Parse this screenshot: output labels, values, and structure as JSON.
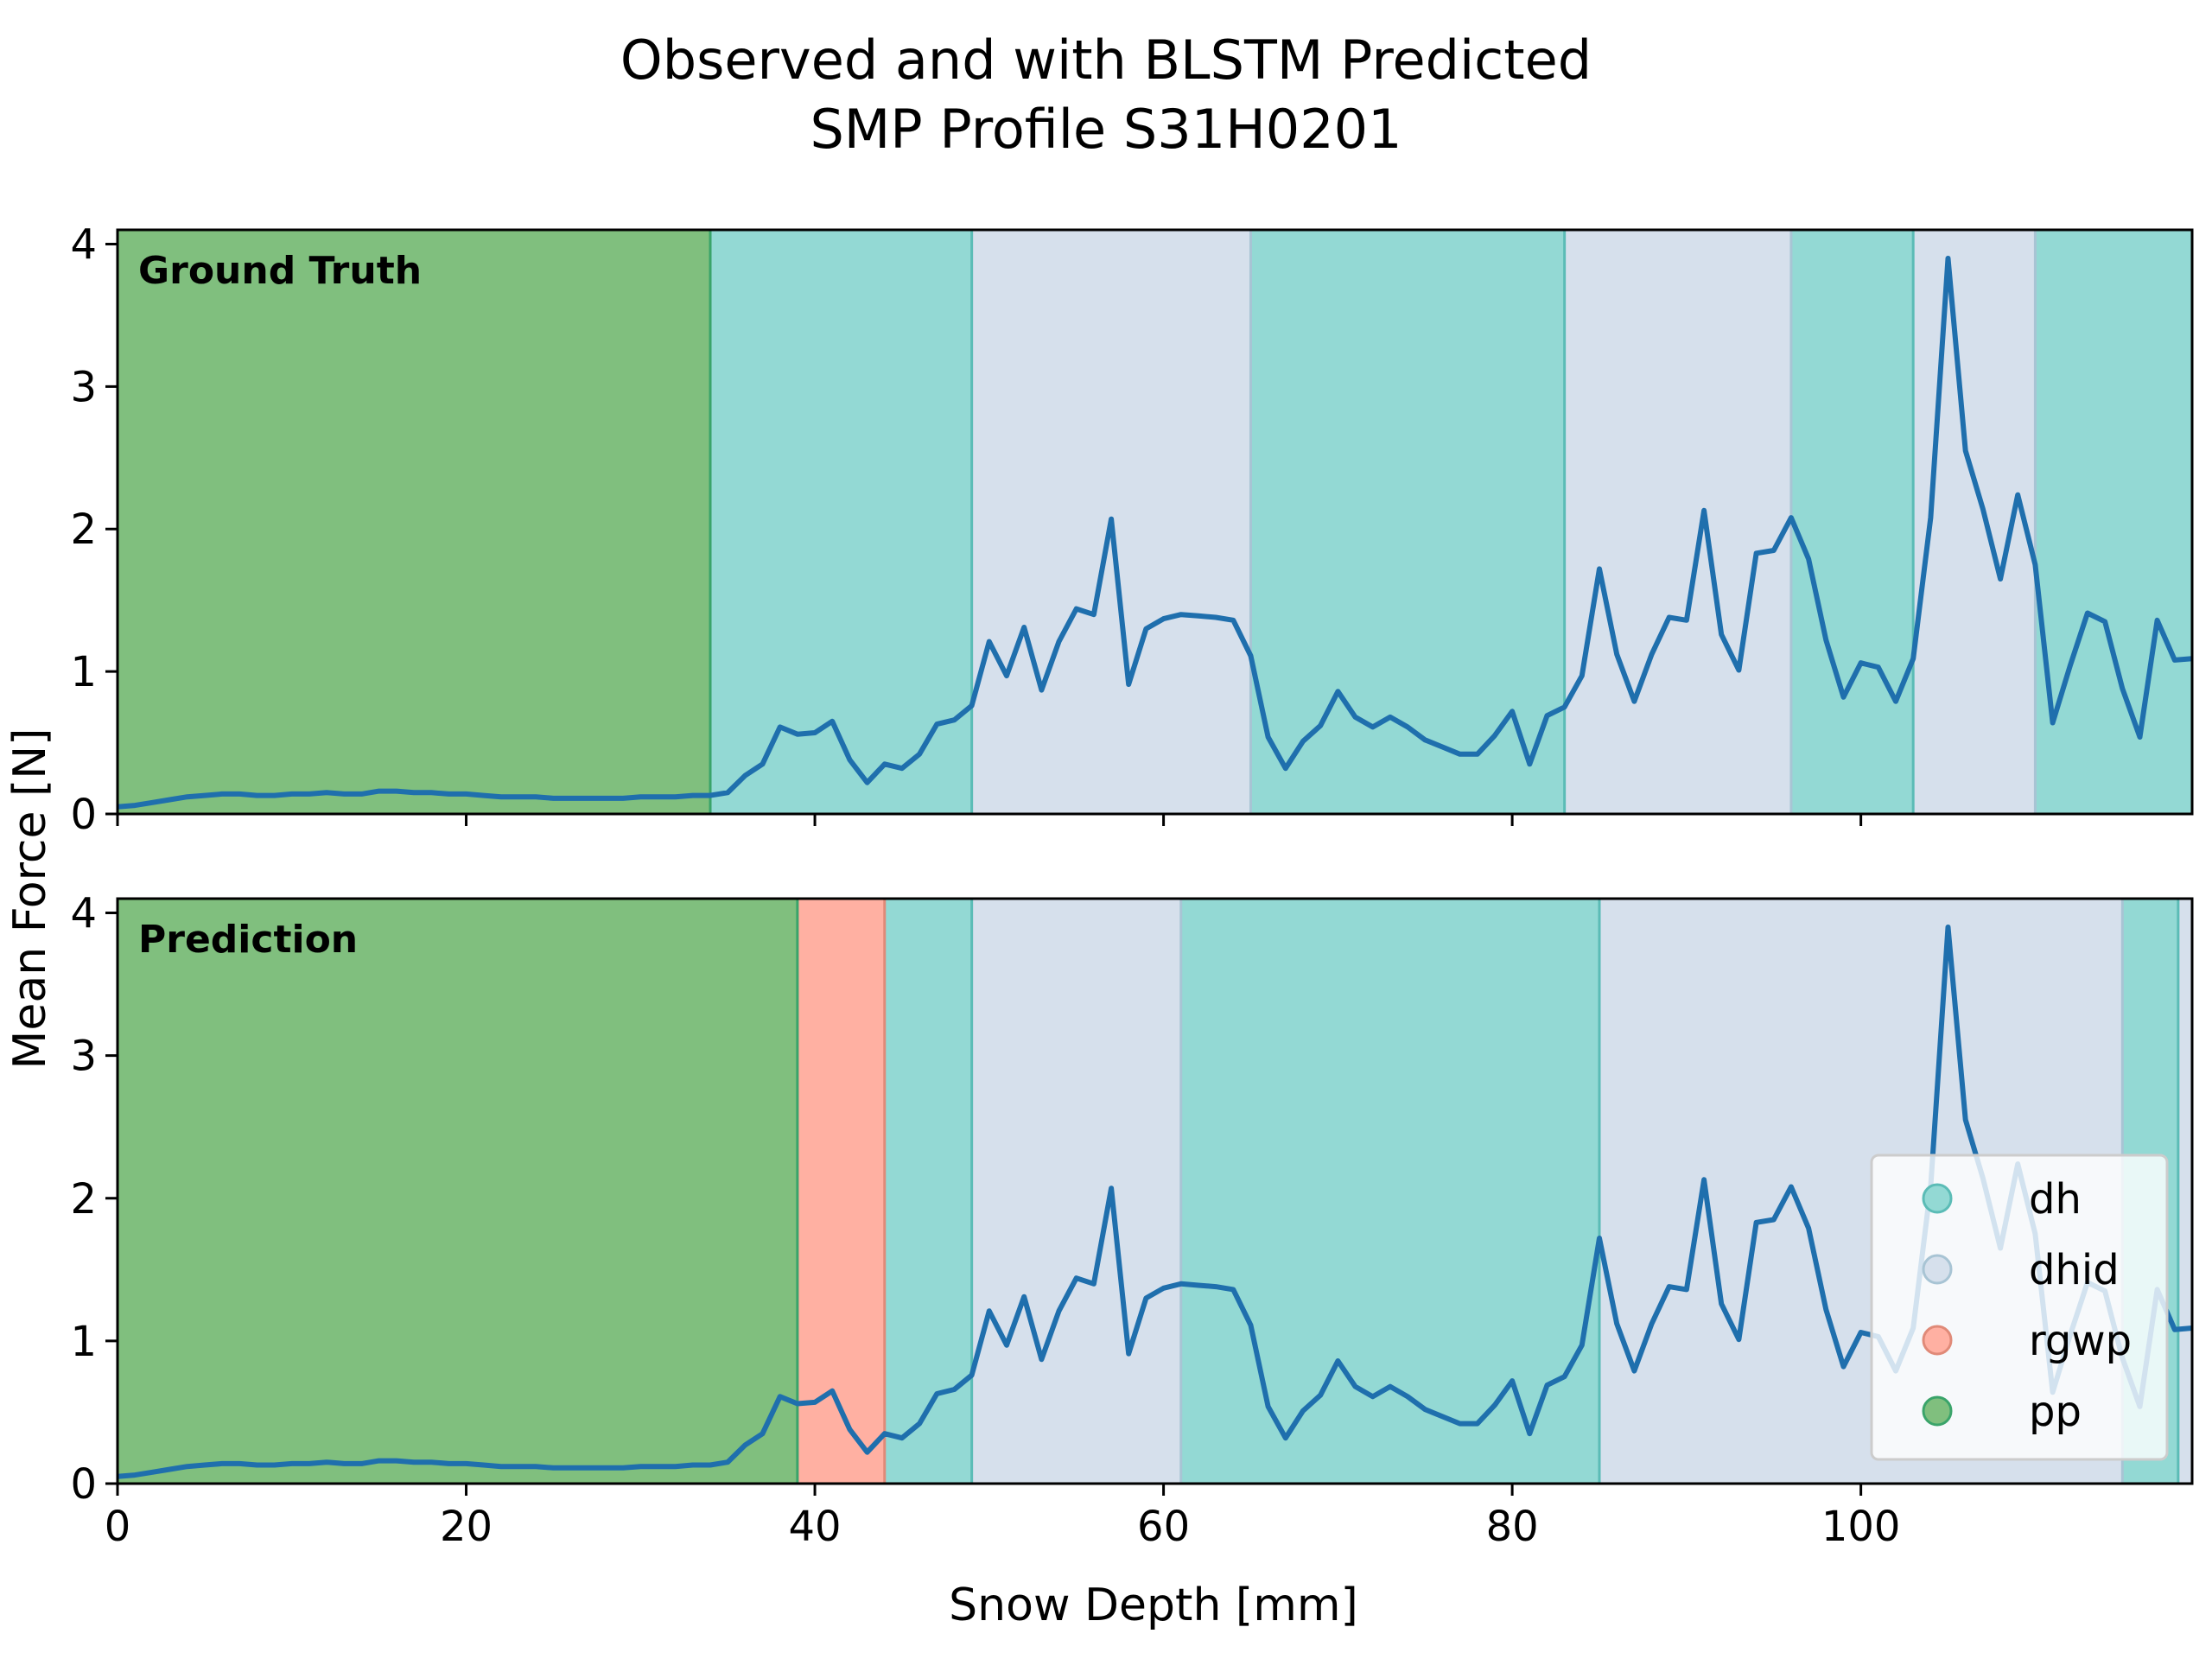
{
  "title_lines": [
    "Observed and with BLSTM Predicted",
    "SMP Profile S31H0201"
  ],
  "colors": {
    "line": "#1f6fad",
    "dh": "#93d9d4",
    "dh_edge": "#5bbcb6",
    "dhid": "#d6e0ec",
    "dhid_edge": "#a8c4d4",
    "rgwp": "#ffb0a2",
    "rgwp_edge": "#e08a78",
    "pp": "#80bf7e",
    "pp_edge": "#3aa46a"
  },
  "chart_data": {
    "type": "line",
    "xlabel": "Snow Depth [mm]",
    "ylabel": "Mean Force [N]",
    "xlim": [
      0,
      119
    ],
    "ylim": [
      0,
      4.1
    ],
    "xticks": [
      0,
      20,
      40,
      60,
      80,
      100
    ],
    "yticks": [
      0,
      1,
      2,
      3,
      4
    ],
    "grid": false,
    "legend": {
      "position": "bottom-right of lower panel",
      "entries": [
        {
          "label": "dh",
          "color": "#93d9d4"
        },
        {
          "label": "dhid",
          "color": "#d6e0ec"
        },
        {
          "label": "rgwp",
          "color": "#ffb0a2"
        },
        {
          "label": "pp",
          "color": "#80bf7e"
        }
      ]
    },
    "series": [
      {
        "x": [
          0,
          1,
          2,
          3,
          4,
          5,
          6,
          7,
          8,
          9,
          10,
          11,
          12,
          13,
          14,
          15,
          16,
          17,
          18,
          19,
          20,
          21,
          22,
          23,
          24,
          25,
          26,
          27,
          28,
          29,
          30,
          31,
          32,
          33,
          34,
          35,
          36,
          37,
          38,
          39,
          40,
          41,
          42,
          43,
          44,
          45,
          46,
          47,
          48,
          49,
          50,
          51,
          52,
          53,
          54,
          55,
          56,
          57,
          58,
          59,
          60,
          61,
          62,
          63,
          64,
          65,
          66,
          67,
          68,
          69,
          70,
          71,
          72,
          73,
          74,
          75,
          76,
          77,
          78,
          79,
          80,
          81,
          82,
          83,
          84,
          85,
          86,
          87,
          88,
          89,
          90,
          91,
          92,
          93,
          94,
          95,
          96,
          97,
          98,
          99,
          100,
          101,
          102,
          103,
          104,
          105,
          106,
          107,
          108,
          109,
          110,
          111,
          112,
          113,
          114,
          115,
          116,
          117,
          118,
          119
        ],
        "y": [
          0.05,
          0.06,
          0.08,
          0.1,
          0.12,
          0.13,
          0.14,
          0.14,
          0.13,
          0.13,
          0.14,
          0.14,
          0.15,
          0.14,
          0.14,
          0.16,
          0.16,
          0.15,
          0.15,
          0.14,
          0.14,
          0.13,
          0.12,
          0.12,
          0.12,
          0.11,
          0.11,
          0.11,
          0.11,
          0.11,
          0.12,
          0.12,
          0.12,
          0.13,
          0.13,
          0.15,
          0.27,
          0.35,
          0.61,
          0.56,
          0.57,
          0.65,
          0.38,
          0.22,
          0.35,
          0.32,
          0.42,
          0.63,
          0.66,
          0.76,
          1.21,
          0.97,
          1.31,
          0.87,
          1.21,
          1.44,
          1.4,
          2.07,
          0.91,
          1.3,
          1.37,
          1.4,
          1.39,
          1.38,
          1.36,
          1.11,
          0.54,
          0.32,
          0.51,
          0.62,
          0.86,
          0.68,
          0.61,
          0.68,
          0.61,
          0.52,
          0.47,
          0.42,
          0.42,
          0.55,
          0.72,
          0.35,
          0.69,
          0.75,
          0.97,
          1.72,
          1.12,
          0.79,
          1.12,
          1.38,
          1.36,
          2.13,
          1.26,
          1.01,
          1.83,
          1.85,
          2.08,
          1.79,
          1.22,
          0.82,
          1.06,
          1.03,
          0.79,
          1.09,
          2.08,
          3.9,
          2.55,
          2.14,
          1.65,
          2.24,
          1.75,
          0.64,
          1.04,
          1.41,
          1.35,
          0.88,
          0.54,
          1.36,
          1.08,
          1.09
        ]
      }
    ],
    "panels": [
      {
        "label": "Ground Truth",
        "segments": [
          {
            "class": "pp",
            "start": 0,
            "end": 34
          },
          {
            "class": "dh",
            "start": 34,
            "end": 49
          },
          {
            "class": "dhid",
            "start": 49,
            "end": 65
          },
          {
            "class": "dh",
            "start": 65,
            "end": 83
          },
          {
            "class": "dhid",
            "start": 83,
            "end": 96
          },
          {
            "class": "dh",
            "start": 96,
            "end": 103
          },
          {
            "class": "dhid",
            "start": 103,
            "end": 110
          },
          {
            "class": "dh",
            "start": 110,
            "end": 119
          }
        ]
      },
      {
        "label": "Prediction",
        "segments": [
          {
            "class": "pp",
            "start": 0,
            "end": 39
          },
          {
            "class": "rgwp",
            "start": 39,
            "end": 44
          },
          {
            "class": "dh",
            "start": 44,
            "end": 49
          },
          {
            "class": "dhid",
            "start": 49,
            "end": 61
          },
          {
            "class": "dh",
            "start": 61,
            "end": 85
          },
          {
            "class": "dhid",
            "start": 85,
            "end": 115
          },
          {
            "class": "dh",
            "start": 115,
            "end": 118.2
          },
          {
            "class": "dhid",
            "start": 118.2,
            "end": 119
          }
        ]
      }
    ]
  }
}
